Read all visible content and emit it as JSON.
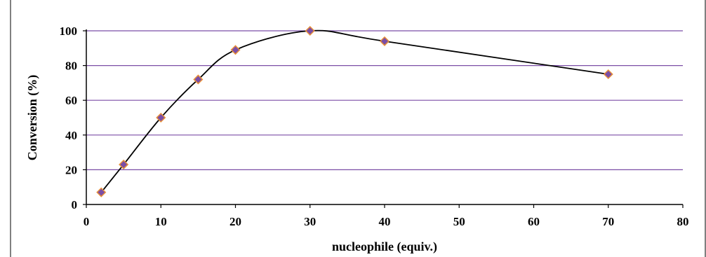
{
  "chart_data": {
    "type": "scatter",
    "title": "",
    "xlabel": "nucleophile (equiv.)",
    "ylabel": "Conversion (%)",
    "xlim": [
      0,
      80
    ],
    "ylim": [
      0,
      100
    ],
    "x_ticks": [
      0,
      10,
      20,
      30,
      40,
      50,
      60,
      70,
      80
    ],
    "y_ticks": [
      0,
      20,
      40,
      60,
      80,
      100
    ],
    "grid": "horizontal",
    "smoothed_line": true,
    "colors": {
      "gridline": "#7b4ea6",
      "marker_fill": "#7b4ea6",
      "marker_stroke": "#e8903a",
      "line": "#000000"
    },
    "series": [
      {
        "x": [
          2,
          5,
          10,
          15,
          20,
          30,
          40,
          70
        ],
        "y": [
          7,
          23,
          50,
          72,
          89,
          100,
          94,
          75
        ]
      }
    ]
  }
}
